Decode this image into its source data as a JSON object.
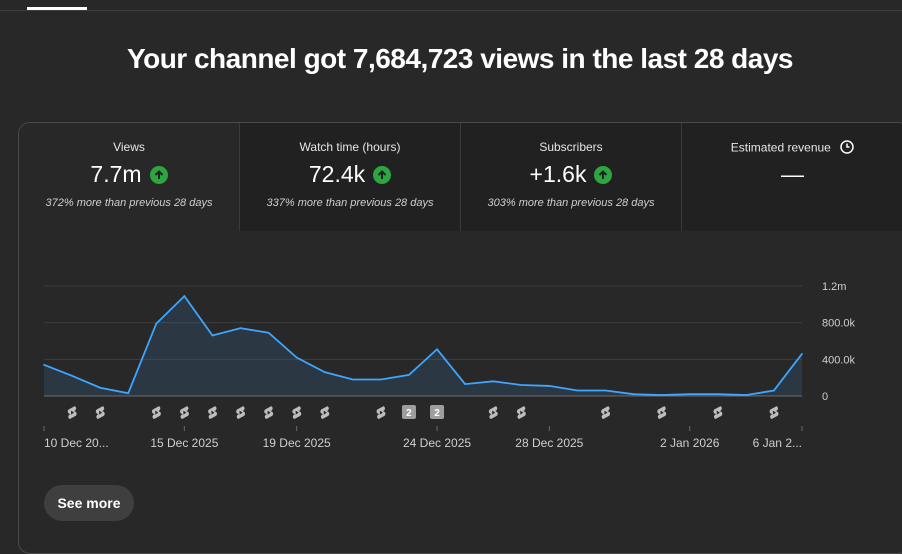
{
  "headline": "Your channel got 7,684,723 views in the last 28 days",
  "metrics": [
    {
      "label": "Views",
      "value": "7.7m",
      "trend": "up",
      "comparison": "372% more than previous 28 days"
    },
    {
      "label": "Watch time (hours)",
      "value": "72.4k",
      "trend": "up",
      "comparison": "337% more than previous 28 days"
    },
    {
      "label": "Subscribers",
      "value": "+1.6k",
      "trend": "up",
      "comparison": "303% more than previous 28 days"
    },
    {
      "label": "Estimated revenue",
      "value": "—"
    }
  ],
  "see_more_label": "See more",
  "colors": {
    "line": "#3ea6ff",
    "up": "#2ba640"
  },
  "chart_data": {
    "type": "area",
    "series": [
      {
        "name": "Views",
        "values": [
          340000,
          220000,
          90000,
          30000,
          790000,
          1090000,
          660000,
          740000,
          690000,
          420000,
          260000,
          180000,
          180000,
          230000,
          510000,
          130000,
          160000,
          120000,
          110000,
          60000,
          60000,
          20000,
          10000,
          20000,
          20000,
          10000,
          60000,
          460000
        ]
      }
    ],
    "ylim": [
      0,
      1200000
    ],
    "y_ticks": [
      "1.2m",
      "800.0k",
      "400.0k",
      "0"
    ],
    "x_tick_labels": [
      {
        "label": "10 Dec 20...",
        "index": 0
      },
      {
        "label": "15 Dec 2025",
        "index": 5
      },
      {
        "label": "19 Dec 2025",
        "index": 9
      },
      {
        "label": "24 Dec 2025",
        "index": 14
      },
      {
        "label": "28 Dec 2025",
        "index": 18
      },
      {
        "label": "2 Jan 2026",
        "index": 23
      },
      {
        "label": "6 Jan 2...",
        "index": 27
      }
    ],
    "upload_markers": [
      {
        "index": 1,
        "count": ""
      },
      {
        "index": 2,
        "count": ""
      },
      {
        "index": 4,
        "count": ""
      },
      {
        "index": 5,
        "count": ""
      },
      {
        "index": 6,
        "count": ""
      },
      {
        "index": 7,
        "count": ""
      },
      {
        "index": 8,
        "count": ""
      },
      {
        "index": 9,
        "count": ""
      },
      {
        "index": 10,
        "count": ""
      },
      {
        "index": 12,
        "count": ""
      },
      {
        "index": 13,
        "count": "2"
      },
      {
        "index": 14,
        "count": "2"
      },
      {
        "index": 16,
        "count": ""
      },
      {
        "index": 17,
        "count": ""
      },
      {
        "index": 20,
        "count": ""
      },
      {
        "index": 22,
        "count": ""
      },
      {
        "index": 24,
        "count": ""
      },
      {
        "index": 26,
        "count": ""
      }
    ]
  }
}
